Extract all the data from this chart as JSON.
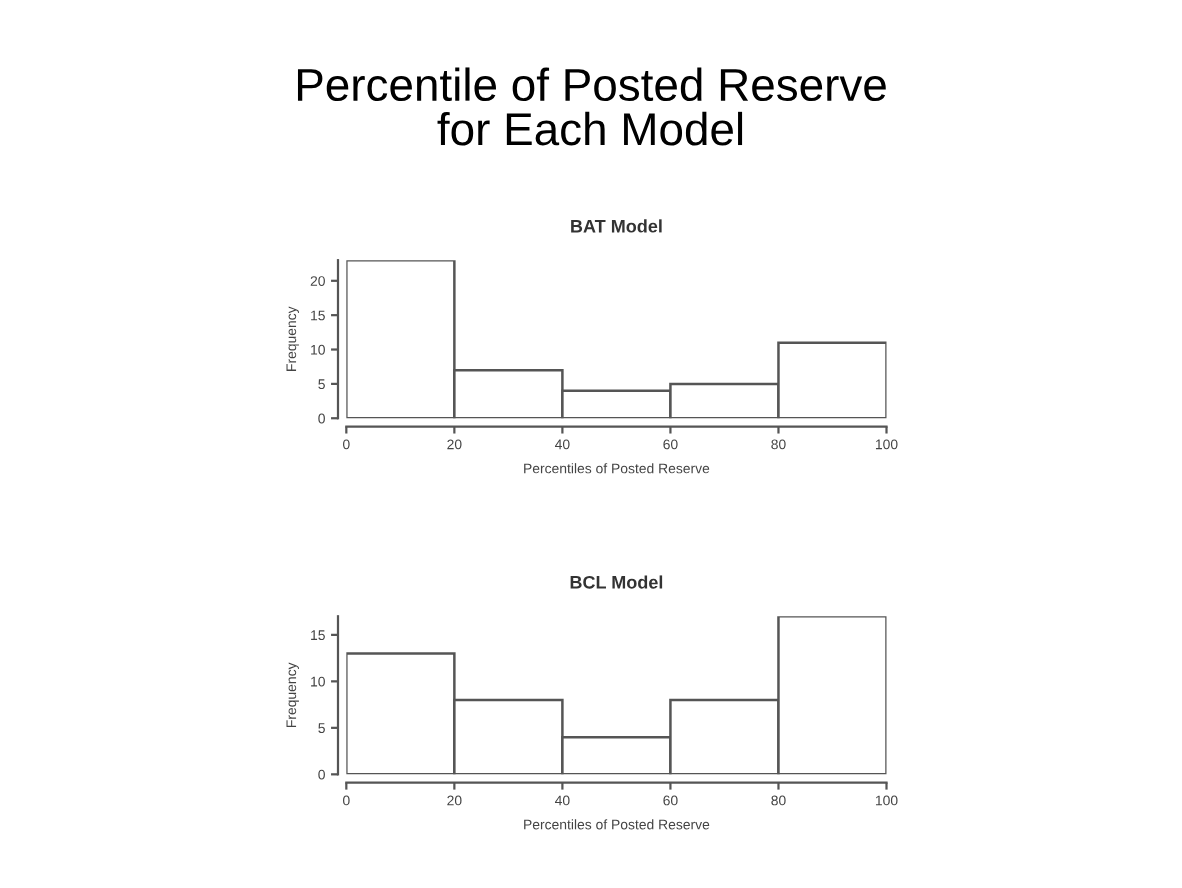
{
  "chart_data": [
    {
      "type": "histogram",
      "annotations": [
        "Percentile of Posted Reserve\nfor Each Model"
      ],
      "title": "BAT Model",
      "xlabel": "Percentiles of Posted Reserve",
      "ylabel": "Frequency",
      "bins": [
        0,
        20,
        40,
        60,
        80,
        100
      ],
      "values": [
        23,
        7,
        4,
        5,
        11
      ],
      "color": "#ffffff",
      "xlim": [
        0,
        100
      ],
      "xticks": [
        0,
        20,
        40,
        60,
        80,
        100
      ],
      "ylim": [
        0,
        23
      ],
      "yticks": [
        0,
        5,
        10,
        15,
        20
      ],
      "grid": false
    },
    {
      "type": "histogram",
      "title": "BCL Model",
      "xlabel": "Percentiles of Posted Reserve",
      "ylabel": "Frequency",
      "bins": [
        0,
        20,
        40,
        60,
        80,
        100
      ],
      "values": [
        13,
        8,
        4,
        8,
        17
      ],
      "color": "#ffffff",
      "xlim": [
        0,
        100
      ],
      "xticks": [
        0,
        20,
        40,
        60,
        80,
        100
      ],
      "ylim": [
        0,
        17
      ],
      "yticks": [
        0,
        5,
        10,
        15
      ],
      "grid": false
    }
  ]
}
